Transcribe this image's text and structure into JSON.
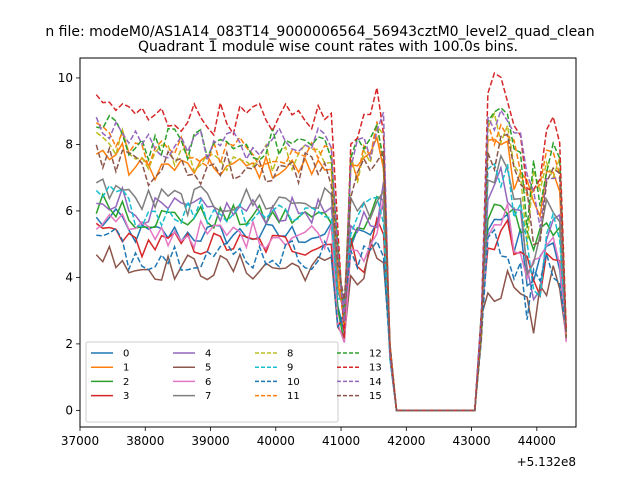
{
  "chart_data": {
    "type": "line",
    "suptitle": "n file: modeM0/AS1A14_083T14_9000006564_56943cztM0_level2_quad_clean",
    "title": "Quadrant 1 module wise count rates with 100.0s bins.",
    "xlabel": "",
    "ylabel": "",
    "x_offset_label": "+5.132e8",
    "xlim": [
      37000,
      44600
    ],
    "ylim": [
      -0.5,
      10.6
    ],
    "x_ticks": [
      37000,
      38000,
      39000,
      40000,
      41000,
      42000,
      43000,
      44000
    ],
    "x_tick_labels": [
      "37000",
      "38000",
      "39000",
      "40000",
      "41000",
      "42000",
      "43000",
      "44000"
    ],
    "y_ticks": [
      0,
      2,
      4,
      6,
      8,
      10
    ],
    "y_tick_labels": [
      "0",
      "2",
      "4",
      "6",
      "8",
      "10"
    ],
    "legend_position": "lower-left",
    "legend_columns": 4,
    "series": [
      {
        "name": "0",
        "color": "#1f77b4",
        "dash": "solid",
        "base": 5.3,
        "postOffset": 0.2
      },
      {
        "name": "1",
        "color": "#ff7f0e",
        "dash": "solid",
        "base": 7.3,
        "postOffset": 0.5
      },
      {
        "name": "2",
        "color": "#2ca02c",
        "dash": "solid",
        "base": 5.8,
        "postOffset": 0.0
      },
      {
        "name": "3",
        "color": "#d62728",
        "dash": "solid",
        "base": 5.0,
        "postOffset": -0.3
      },
      {
        "name": "4",
        "color": "#9467bd",
        "dash": "solid",
        "base": 6.0,
        "postOffset": 0.3
      },
      {
        "name": "5",
        "color": "#8c564b",
        "dash": "solid",
        "base": 4.3,
        "postOffset": -1.0
      },
      {
        "name": "6",
        "color": "#e377c2",
        "dash": "solid",
        "base": 5.3,
        "postOffset": 0.0
      },
      {
        "name": "7",
        "color": "#7f7f7f",
        "dash": "solid",
        "base": 6.3,
        "postOffset": 0.3
      },
      {
        "name": "8",
        "color": "#bcbd22",
        "dash": "dashed",
        "base": 7.6,
        "postOffset": 0.3
      },
      {
        "name": "9",
        "color": "#17becf",
        "dash": "dashed",
        "base": 6.0,
        "postOffset": 0.8
      },
      {
        "name": "10",
        "color": "#1f77b4",
        "dash": "dashed",
        "base": 4.7,
        "postOffset": -0.2
      },
      {
        "name": "11",
        "color": "#ff7f0e",
        "dash": "dashed",
        "base": 7.8,
        "postOffset": 0.2
      },
      {
        "name": "12",
        "color": "#2ca02c",
        "dash": "dashed",
        "base": 8.0,
        "postOffset": 0.3
      },
      {
        "name": "13",
        "color": "#d62728",
        "dash": "dashed",
        "base": 8.8,
        "postOffset": 0.5
      },
      {
        "name": "14",
        "color": "#9467bd",
        "dash": "dashed",
        "base": 8.0,
        "postOffset": 0.5
      },
      {
        "name": "15",
        "color": "#8c564b",
        "dash": "dashed",
        "base": 7.3,
        "postOffset": 0.0
      }
    ]
  }
}
